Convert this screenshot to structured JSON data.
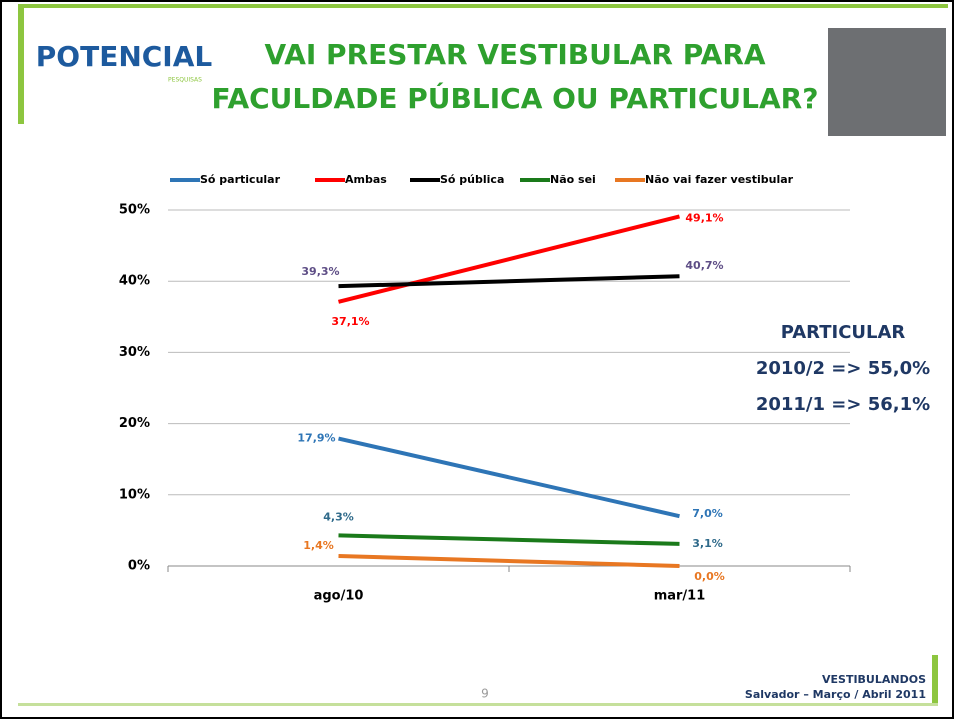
{
  "header": {
    "logo": "POTENCIAL",
    "logo_sub": "PESQUISAS",
    "title_line1": "VAI PRESTAR VESTIBULAR PARA",
    "title_line2": "FACULDADE PÚBLICA OU PARTICULAR?"
  },
  "chart_data": {
    "type": "line",
    "categories": [
      "ago/10",
      "mar/11"
    ],
    "series": [
      {
        "name": "Só particular",
        "color": "#2e75b6",
        "label_color": "#2e75b6",
        "values": [
          17.9,
          7.0
        ],
        "value_labels": [
          "17,9%",
          "7,0%"
        ]
      },
      {
        "name": "Ambas",
        "color": "#ff0000",
        "label_color": "#ff0000",
        "values": [
          37.1,
          49.1
        ],
        "value_labels": [
          "37,1%",
          "49,1%"
        ]
      },
      {
        "name": "Só pública",
        "color": "#000000",
        "label_color": "#5e4e86",
        "values": [
          39.3,
          40.7
        ],
        "value_labels": [
          "39,3%",
          "40,7%"
        ]
      },
      {
        "name": "Não sei",
        "color": "#1a7a1a",
        "label_color": "#2f6a8a",
        "values": [
          4.3,
          3.1
        ],
        "value_labels": [
          "4,3%",
          "3,1%"
        ]
      },
      {
        "name": "Não vai fazer vestibular",
        "color": "#e87722",
        "label_color": "#e87722",
        "values": [
          1.4,
          0.0
        ],
        "value_labels": [
          "1,4%",
          "0,0%"
        ]
      }
    ],
    "ylim": [
      0,
      50
    ],
    "yticks": [
      {
        "value": 0,
        "label": "0%"
      },
      {
        "value": 10,
        "label": "10%"
      },
      {
        "value": 20,
        "label": "20%"
      },
      {
        "value": 30,
        "label": "30%"
      },
      {
        "value": 40,
        "label": "40%"
      },
      {
        "value": 50,
        "label": "50%"
      }
    ],
    "grid": true,
    "legend": "top",
    "annotations": [
      "PARTICULAR",
      "2010/2 => 55,0%",
      "2011/1 => 56,1%"
    ]
  },
  "footer": {
    "page": "9",
    "line1": "VESTIBULANDOS",
    "line2": "Salvador – Março / Abril 2011"
  }
}
